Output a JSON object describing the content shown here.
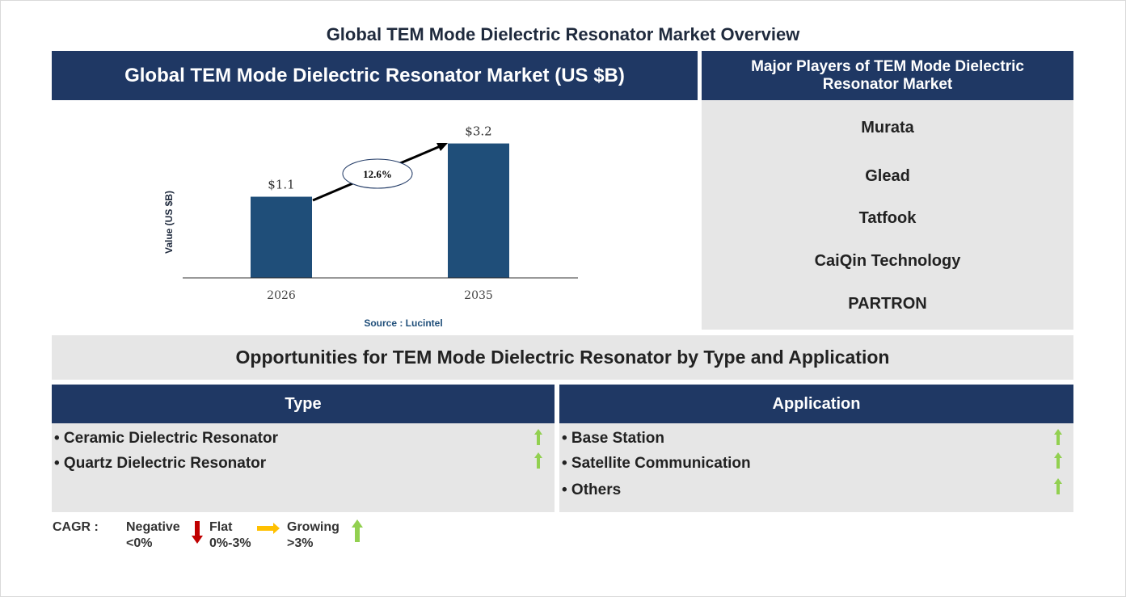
{
  "title": "Global TEM Mode Dielectric Resonator Market Overview",
  "market_header": "Global TEM Mode Dielectric Resonator Market (US $B)",
  "players_header": "Major Players of TEM Mode Dielectric Resonator Market",
  "players": [
    "Murata",
    "Glead",
    "Tatfook",
    "CaiQin Technology",
    "PARTRON"
  ],
  "source": "Source : Lucintel",
  "chart_data": {
    "type": "bar",
    "categories": [
      "2026",
      "2035"
    ],
    "values": [
      1.1,
      3.2
    ],
    "data_labels": [
      "$1.1",
      "$3.2"
    ],
    "ylabel": "Value (US $B)",
    "cagr_label": "12.6%",
    "bar_color": "#1f4e79"
  },
  "opportunities_header": "Opportunities for TEM Mode Dielectric Resonator by Type and Application",
  "type": {
    "header": "Type",
    "items": [
      "• Ceramic Dielectric Resonator",
      "• Quartz Dielectric Resonator"
    ],
    "trend": [
      "growing",
      "growing"
    ]
  },
  "application": {
    "header": "Application",
    "items": [
      "• Base Station",
      "• Satellite Communication",
      "• Others"
    ],
    "trend": [
      "growing",
      "growing",
      "growing"
    ]
  },
  "legend": {
    "cagr": "CAGR :",
    "negative": "Negative",
    "negative_range": "<0%",
    "flat": "Flat",
    "flat_range": "0%-3%",
    "growing": "Growing",
    "growing_range": ">3%",
    "colors": {
      "negative": "#c00000",
      "flat": "#ffc000",
      "growing": "#92d050"
    }
  }
}
